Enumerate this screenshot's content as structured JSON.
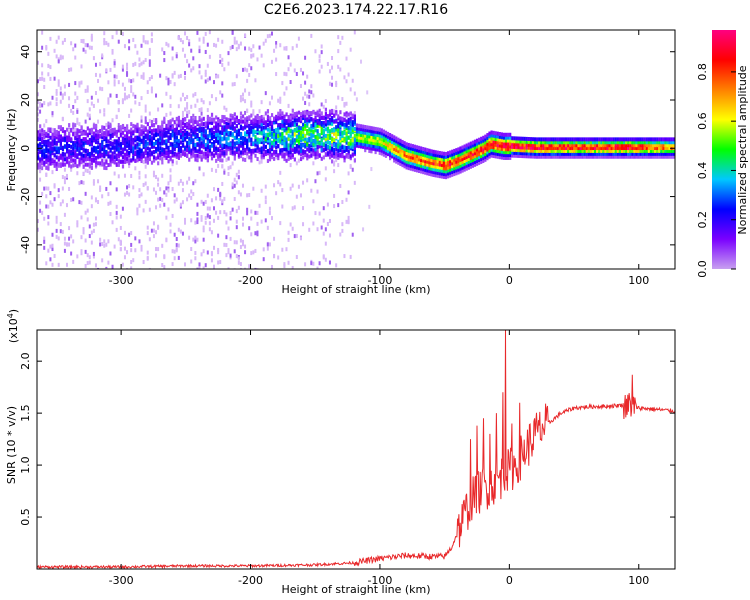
{
  "title": "C2E6.2023.174.22.17.R16",
  "chart_data": [
    {
      "type": "heatmap",
      "xlabel": "Height of straight line (km)",
      "ylabel": "Frequency (Hz)",
      "xlim": [
        -365,
        128
      ],
      "ylim": [
        -50,
        49
      ],
      "xticks": [
        -300,
        -200,
        -100,
        0,
        100
      ],
      "yticks": [
        -40,
        -20,
        0,
        20,
        40
      ],
      "colorbar": {
        "label": "Normalized spectral amplitude",
        "range": [
          0.0,
          0.97
        ],
        "ticks": [
          "0.0",
          "0.2",
          "0.4",
          "0.6",
          "0.8"
        ],
        "colormap": [
          "#c8a0f0",
          "#7a00ff",
          "#0000ff",
          "#00c8ff",
          "#00ff00",
          "#ffff00",
          "#ff8000",
          "#ff0000",
          "#ff0080"
        ]
      },
      "ridge": {
        "height_km": [
          -365,
          -300,
          -250,
          -200,
          -170,
          -150,
          -120,
          -100,
          -80,
          -60,
          -50,
          -40,
          -20,
          -15,
          -5,
          0,
          20,
          60,
          90,
          128
        ],
        "frequency_hz": [
          0,
          1,
          4,
          5,
          5,
          6,
          5,
          3,
          -3,
          -6,
          -7,
          -5,
          0,
          2,
          1,
          1,
          0.5,
          0.5,
          0.5,
          0.5
        ],
        "peak_amplitude": [
          0.25,
          0.25,
          0.3,
          0.35,
          0.5,
          0.55,
          0.55,
          0.6,
          0.75,
          0.8,
          0.85,
          0.8,
          0.85,
          0.9,
          0.9,
          0.95,
          0.9,
          0.85,
          0.9,
          0.7
        ]
      }
    },
    {
      "type": "line",
      "xlabel": "Height of straight line (km)",
      "ylabel": "SNR (10 * v/v)",
      "scale_note": "(x10",
      "scale_exp": "4",
      "scale_close": ")",
      "xlim": [
        -365,
        128
      ],
      "ylim": [
        0,
        2.3
      ],
      "xticks": [
        -300,
        -200,
        -100,
        0,
        100
      ],
      "yticks": [
        0.5,
        1.0,
        1.5,
        2.0
      ],
      "series": [
        {
          "color": "#e8292b",
          "x": [
            -365,
            -300,
            -250,
            -200,
            -150,
            -120,
            -100,
            -80,
            -60,
            -50,
            -45,
            -40,
            -35,
            -30,
            -25,
            -20,
            -15,
            -10,
            -5,
            0,
            5,
            10,
            15,
            20,
            25,
            30,
            40,
            50,
            60,
            80,
            90,
            95,
            100,
            110,
            128
          ],
          "y": [
            0.02,
            0.02,
            0.03,
            0.03,
            0.04,
            0.06,
            0.1,
            0.13,
            0.12,
            0.12,
            0.2,
            0.35,
            0.5,
            0.65,
            0.72,
            0.78,
            0.8,
            0.85,
            0.9,
            0.95,
            1.0,
            1.1,
            1.2,
            1.3,
            1.35,
            1.4,
            1.5,
            1.55,
            1.56,
            1.57,
            1.58,
            1.58,
            1.55,
            1.54,
            1.52
          ],
          "spikes": [
            {
              "x": -30,
              "y": 1.25
            },
            {
              "x": -25,
              "y": 1.38
            },
            {
              "x": -20,
              "y": 1.45
            },
            {
              "x": -15,
              "y": 1.3
            },
            {
              "x": -10,
              "y": 1.5
            },
            {
              "x": -5,
              "y": 1.7
            },
            {
              "x": -3,
              "y": 2.3
            },
            {
              "x": 2,
              "y": 1.4
            },
            {
              "x": 8,
              "y": 1.6
            },
            {
              "x": 95,
              "y": 1.8
            }
          ]
        }
      ]
    }
  ]
}
